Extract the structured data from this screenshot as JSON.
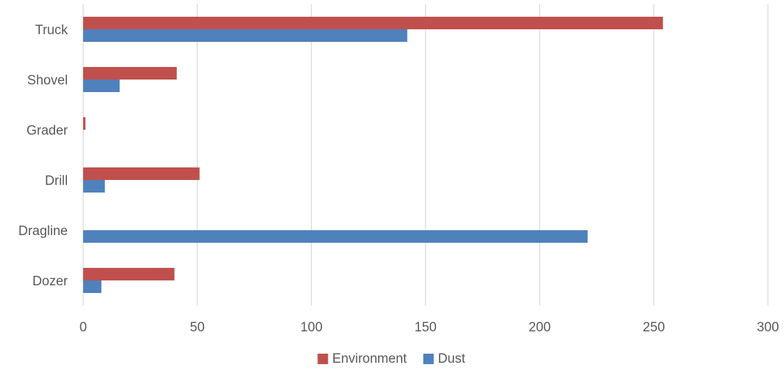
{
  "chart_data": {
    "type": "bar",
    "orientation": "horizontal",
    "categories": [
      "Dozer",
      "Dragline",
      "Drill",
      "Grader",
      "Shovel",
      "Truck"
    ],
    "series": [
      {
        "name": "Environment",
        "color": "#C0504D",
        "values": [
          40,
          0,
          51,
          1,
          41,
          254
        ]
      },
      {
        "name": "Dust",
        "color": "#4F81BD",
        "values": [
          8,
          221,
          9.5,
          0,
          16,
          142
        ]
      }
    ],
    "xlim": [
      0,
      300
    ],
    "xticks": [
      0,
      50,
      100,
      150,
      200,
      250,
      300
    ],
    "grid": true,
    "legend_position": "bottom"
  }
}
